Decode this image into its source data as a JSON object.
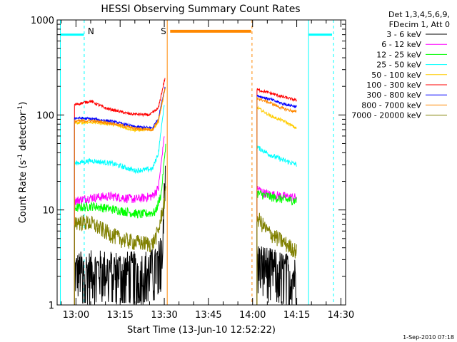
{
  "chart_data": {
    "type": "line",
    "title": "HESSI Observing Summary Count Rates",
    "xlabel": "Start Time (13-Jun-10 12:52:22)",
    "ylabel_main": "Count Rate (s",
    "ylabel_sup1": "-1",
    "ylabel_mid": " detector",
    "ylabel_sup2": "-1",
    "ylabel_end": ")",
    "yscale": "log",
    "ylim": [
      1,
      1000
    ],
    "xlim_minutes": [
      -6.4,
      91.6
    ],
    "x_ticks": [
      {
        "label": "13:00",
        "min": 0
      },
      {
        "label": "13:15",
        "min": 15
      },
      {
        "label": "13:30",
        "min": 30
      },
      {
        "label": "13:45",
        "min": 45
      },
      {
        "label": "14:00",
        "min": 60
      },
      {
        "label": "14:15",
        "min": 75
      },
      {
        "label": "14:30",
        "min": 90
      }
    ],
    "y_ticks": [
      {
        "label": "1",
        "value": 1
      },
      {
        "label": "10",
        "value": 10
      },
      {
        "label": "100",
        "value": 100
      },
      {
        "label": "1000",
        "value": 1000
      }
    ],
    "legend_header": [
      "Det 1,3,4,5,6,9,",
      "FDecim 1, Att 0"
    ],
    "legend_position": "top-right outside",
    "series": [
      {
        "name": "3 - 6 keV",
        "color": "#000000",
        "segments": [
          [
            [
              -0.5,
              2.3
            ],
            [
              10,
              2.4
            ],
            [
              20,
              2.3
            ],
            [
              27,
              2.5
            ],
            [
              29,
              3.5
            ],
            [
              30.5,
              40
            ]
          ],
          [
            [
              61.5,
              3.0
            ],
            [
              66,
              2.5
            ],
            [
              72,
              2.2
            ],
            [
              75,
              2.0
            ]
          ]
        ]
      },
      {
        "name": "6 - 12 keV",
        "color": "#ff00ff",
        "segments": [
          [
            [
              -0.5,
              12.5
            ],
            [
              5,
              13.5
            ],
            [
              12,
              14
            ],
            [
              20,
              13
            ],
            [
              26,
              14
            ],
            [
              28,
              17
            ],
            [
              30,
              60
            ]
          ],
          [
            [
              61.5,
              17
            ],
            [
              64,
              15
            ],
            [
              70,
              14
            ],
            [
              75,
              13.5
            ]
          ]
        ]
      },
      {
        "name": "12 - 25 keV",
        "color": "#00ff00",
        "segments": [
          [
            [
              -0.5,
              10.5
            ],
            [
              6,
              11
            ],
            [
              14,
              10
            ],
            [
              22,
              9
            ],
            [
              27,
              9.5
            ],
            [
              29,
              15
            ],
            [
              30.5,
              50
            ]
          ],
          [
            [
              61.5,
              15
            ],
            [
              65,
              14
            ],
            [
              70,
              13
            ],
            [
              75,
              12.5
            ]
          ]
        ]
      },
      {
        "name": "25 - 50 keV",
        "color": "#00ffff",
        "segments": [
          [
            [
              -0.5,
              31
            ],
            [
              5,
              33
            ],
            [
              12,
              31
            ],
            [
              20,
              26
            ],
            [
              26,
              27
            ],
            [
              28,
              40
            ],
            [
              30,
              130
            ]
          ],
          [
            [
              61.5,
              46
            ],
            [
              66,
              38
            ],
            [
              71,
              33
            ],
            [
              75,
              30
            ]
          ]
        ]
      },
      {
        "name": "50 - 100 keV",
        "color": "#ffcc00",
        "segments": [
          [
            [
              -0.5,
              82
            ],
            [
              5,
              84
            ],
            [
              12,
              80
            ],
            [
              20,
              69
            ],
            [
              26,
              70
            ],
            [
              28,
              85
            ],
            [
              30.5,
              200
            ]
          ],
          [
            [
              61.5,
              120
            ],
            [
              66,
              98
            ],
            [
              71,
              85
            ],
            [
              75,
              72
            ]
          ]
        ]
      },
      {
        "name": "100 - 300 keV",
        "color": "#ff0000",
        "segments": [
          [
            [
              -0.5,
              128
            ],
            [
              5,
              140
            ],
            [
              10,
              118
            ],
            [
              18,
              103
            ],
            [
              25,
              100
            ],
            [
              28,
              118
            ],
            [
              30.3,
              250
            ]
          ],
          [
            [
              61.5,
              185
            ],
            [
              66,
              170
            ],
            [
              70,
              156
            ],
            [
              75,
              142
            ]
          ]
        ]
      },
      {
        "name": "300 - 800 keV",
        "color": "#0000ff",
        "segments": [
          [
            [
              -0.5,
              93
            ],
            [
              5,
              91
            ],
            [
              12,
              86
            ],
            [
              20,
              75
            ],
            [
              26,
              73
            ],
            [
              28,
              92
            ],
            [
              30.3,
              200
            ]
          ],
          [
            [
              61.5,
              160
            ],
            [
              66,
              146
            ],
            [
              70,
              132
            ],
            [
              75,
              122
            ]
          ]
        ]
      },
      {
        "name": "800 - 7000 keV",
        "color": "#ff8800",
        "segments": [
          [
            [
              -0.5,
              86
            ],
            [
              5,
              87
            ],
            [
              12,
              82
            ],
            [
              20,
              72
            ],
            [
              26,
              70
            ],
            [
              28,
              88
            ],
            [
              30.3,
              190
            ]
          ],
          [
            [
              61.5,
              150
            ],
            [
              66,
              134
            ],
            [
              70,
              118
            ],
            [
              75,
              107
            ]
          ]
        ]
      },
      {
        "name": "7000 - 20000 keV",
        "color": "#808000",
        "segments": [
          [
            [
              -0.5,
              7.6
            ],
            [
              5,
              7.3
            ],
            [
              10,
              6.0
            ],
            [
              15,
              5.0
            ],
            [
              20,
              4.6
            ],
            [
              26,
              4.4
            ],
            [
              28,
              6
            ],
            [
              30.5,
              15
            ]
          ],
          [
            [
              61.5,
              8.5
            ],
            [
              65,
              6
            ],
            [
              70,
              4.7
            ],
            [
              75,
              3.7
            ]
          ]
        ]
      }
    ],
    "annotations": [
      {
        "label": "N",
        "color": "#00ffff",
        "type": "night",
        "bars": [
          [
            -5.3,
            2.7
          ],
          [
            79,
            87
          ]
        ],
        "bar_level": 700,
        "lines": [
          2.8,
          87.5
        ]
      },
      {
        "label": "S",
        "color": "#ff8800",
        "type": "saa",
        "bars": [
          [
            32,
            59.5
          ]
        ],
        "bar_level": 760,
        "lines": [
          31,
          59.8
        ]
      }
    ],
    "grid": false
  },
  "footer": {
    "date": "1-Sep-2010 07:18"
  }
}
